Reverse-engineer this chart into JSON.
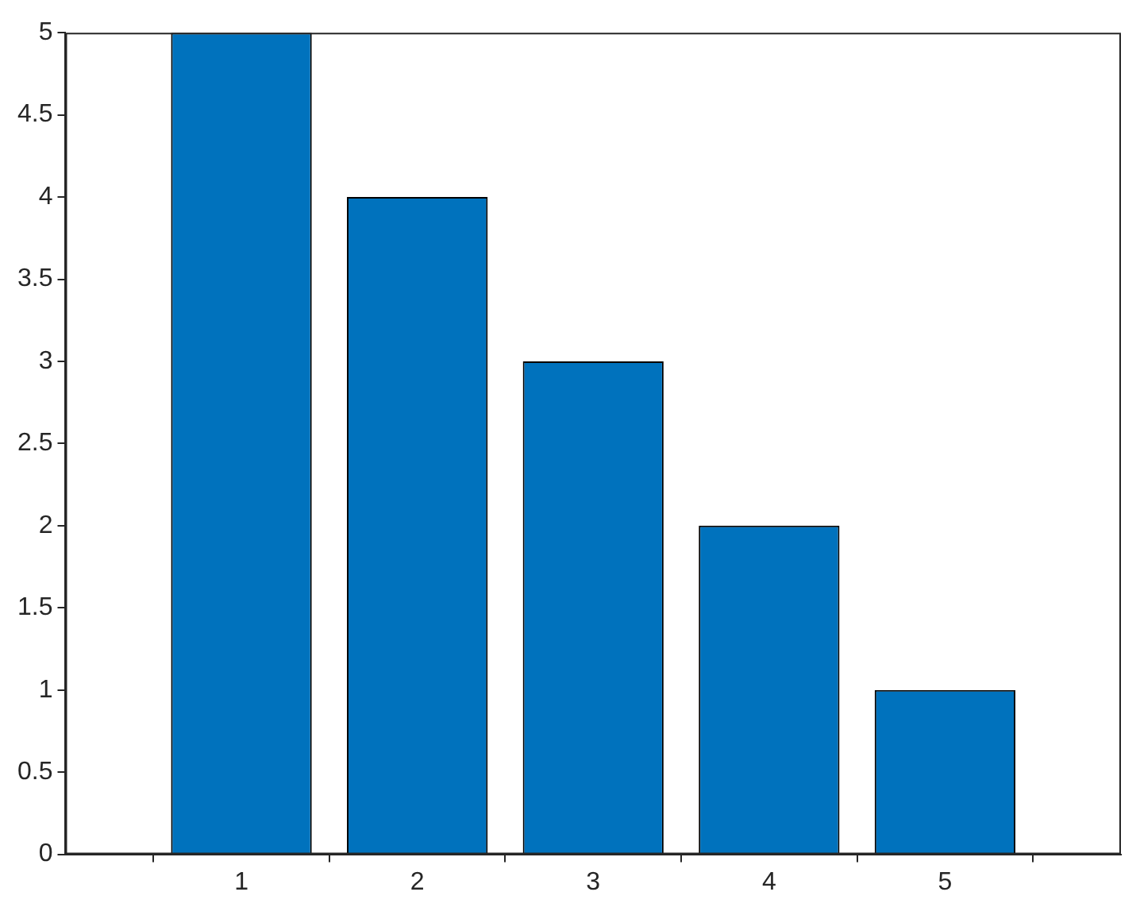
{
  "chart_data": {
    "type": "bar",
    "x": [
      1,
      2,
      3,
      4,
      5
    ],
    "values": [
      5,
      4,
      3,
      2,
      1
    ],
    "color": "#0072bd",
    "xlim": [
      0,
      6
    ],
    "xticks": [
      1,
      2,
      3,
      4,
      5
    ],
    "ylim": [
      0,
      5
    ],
    "yticks": [
      0,
      0.5,
      1,
      1.5,
      2,
      2.5,
      3,
      3.5,
      4,
      4.5,
      5
    ],
    "grid": false,
    "legend": false
  }
}
